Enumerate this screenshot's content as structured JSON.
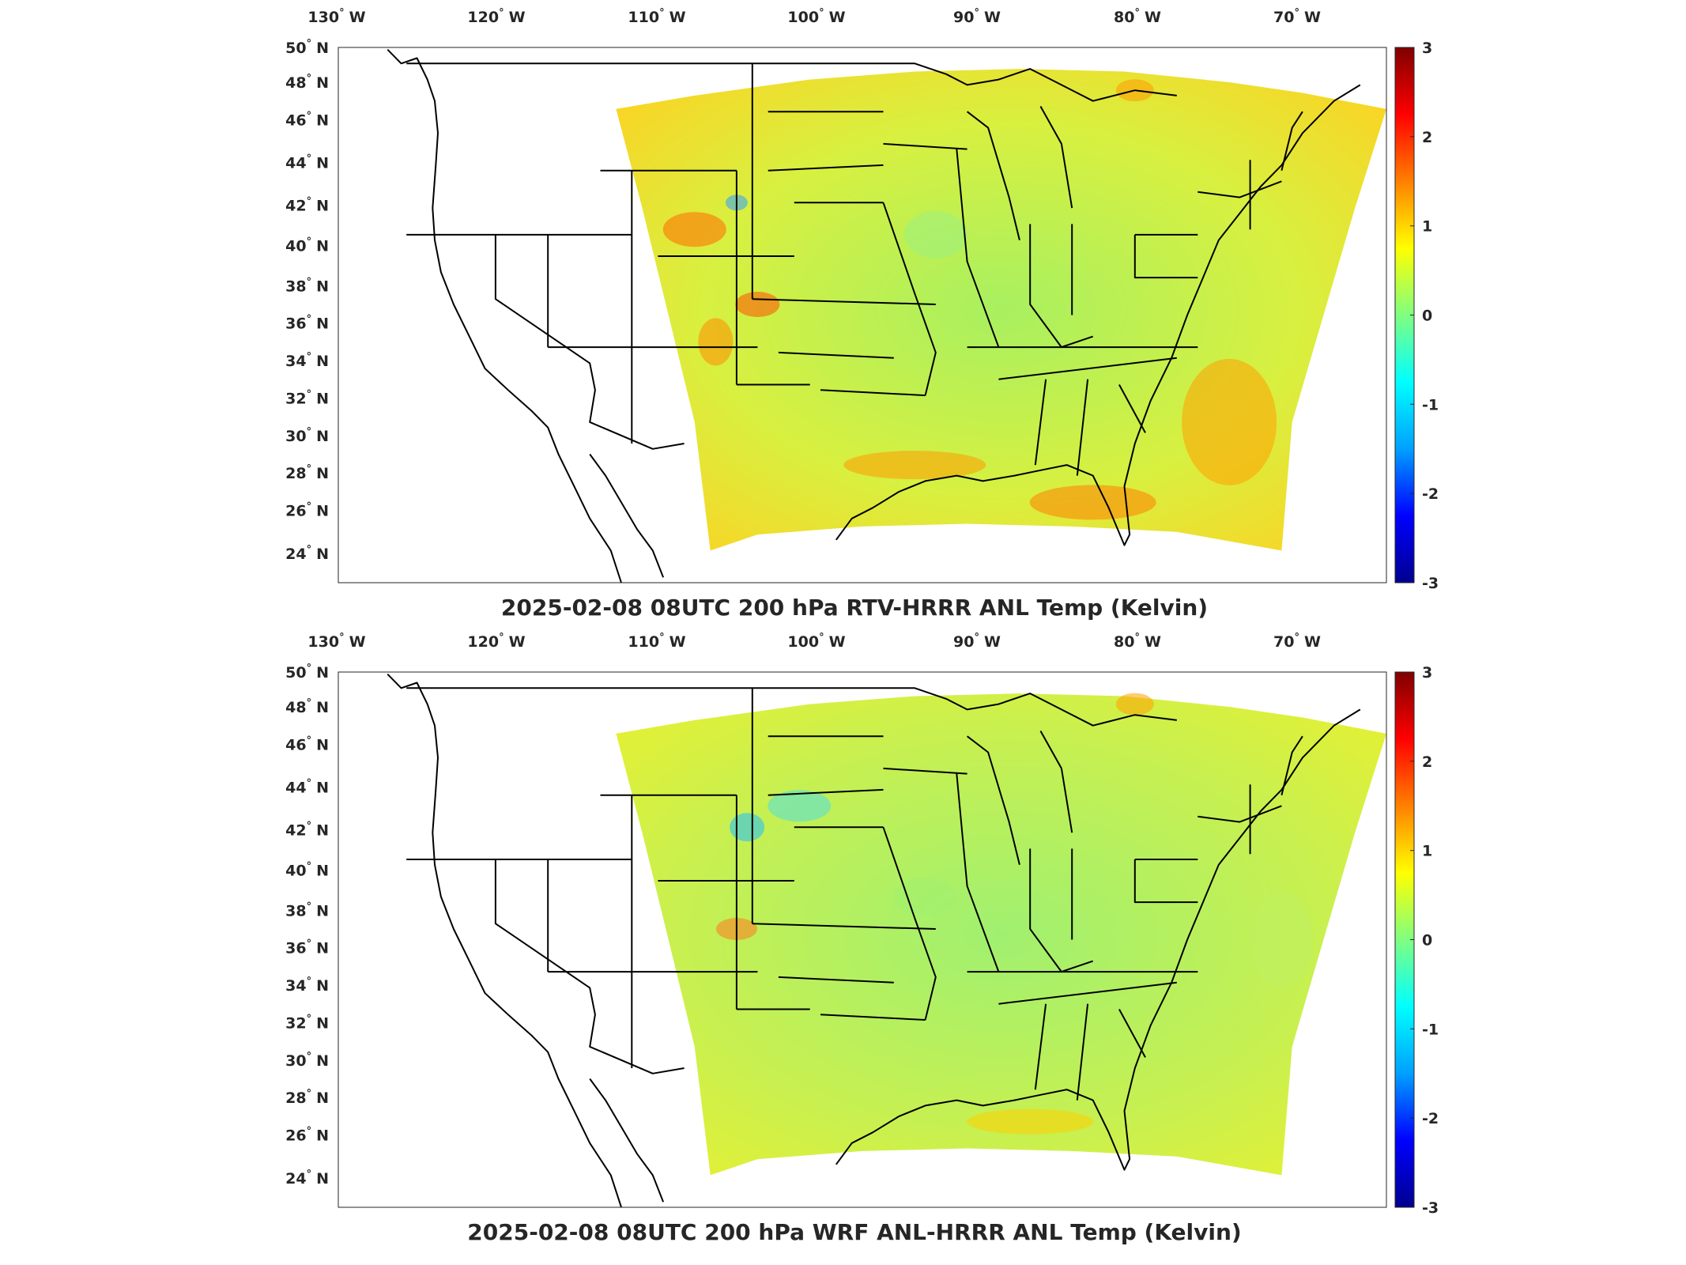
{
  "panels": [
    {
      "title": "2025-02-08 08UTC 200 hPa RTV-HRRR ANL Temp (Kelvin)",
      "lon_ticks": [
        {
          "deg": "130",
          "hem": "W"
        },
        {
          "deg": "120",
          "hem": "W"
        },
        {
          "deg": "110",
          "hem": "W"
        },
        {
          "deg": "100",
          "hem": "W"
        },
        {
          "deg": "90",
          "hem": "W"
        },
        {
          "deg": "80",
          "hem": "W"
        },
        {
          "deg": "70",
          "hem": "W"
        }
      ],
      "lat_ticks": [
        {
          "deg": "50",
          "hem": "N"
        },
        {
          "deg": "48",
          "hem": "N"
        },
        {
          "deg": "46",
          "hem": "N"
        },
        {
          "deg": "44",
          "hem": "N"
        },
        {
          "deg": "42",
          "hem": "N"
        },
        {
          "deg": "40",
          "hem": "N"
        },
        {
          "deg": "38",
          "hem": "N"
        },
        {
          "deg": "36",
          "hem": "N"
        },
        {
          "deg": "34",
          "hem": "N"
        },
        {
          "deg": "32",
          "hem": "N"
        },
        {
          "deg": "30",
          "hem": "N"
        },
        {
          "deg": "28",
          "hem": "N"
        },
        {
          "deg": "26",
          "hem": "N"
        },
        {
          "deg": "24",
          "hem": "N"
        }
      ],
      "colorbar": {
        "ticks": [
          "3",
          "2",
          "1",
          "0",
          "-1",
          "-2",
          "-3"
        ],
        "min": -3,
        "max": 3
      }
    },
    {
      "title": "2025-02-08 08UTC 200 hPa WRF ANL-HRRR ANL Temp (Kelvin)",
      "lon_ticks": [
        {
          "deg": "130",
          "hem": "W"
        },
        {
          "deg": "120",
          "hem": "W"
        },
        {
          "deg": "110",
          "hem": "W"
        },
        {
          "deg": "100",
          "hem": "W"
        },
        {
          "deg": "90",
          "hem": "W"
        },
        {
          "deg": "80",
          "hem": "W"
        },
        {
          "deg": "70",
          "hem": "W"
        }
      ],
      "lat_ticks": [
        {
          "deg": "50",
          "hem": "N"
        },
        {
          "deg": "48",
          "hem": "N"
        },
        {
          "deg": "46",
          "hem": "N"
        },
        {
          "deg": "44",
          "hem": "N"
        },
        {
          "deg": "42",
          "hem": "N"
        },
        {
          "deg": "40",
          "hem": "N"
        },
        {
          "deg": "38",
          "hem": "N"
        },
        {
          "deg": "36",
          "hem": "N"
        },
        {
          "deg": "34",
          "hem": "N"
        },
        {
          "deg": "32",
          "hem": "N"
        },
        {
          "deg": "30",
          "hem": "N"
        },
        {
          "deg": "28",
          "hem": "N"
        },
        {
          "deg": "26",
          "hem": "N"
        },
        {
          "deg": "24",
          "hem": "N"
        }
      ],
      "colorbar": {
        "ticks": [
          "3",
          "2",
          "1",
          "0",
          "-1",
          "-2",
          "-3"
        ],
        "min": -3,
        "max": 3
      }
    }
  ],
  "colormap": [
    "#00008f",
    "#0000ff",
    "#00a0ff",
    "#00ffff",
    "#80ff80",
    "#ffff00",
    "#ff8000",
    "#ff0000",
    "#800000"
  ]
}
